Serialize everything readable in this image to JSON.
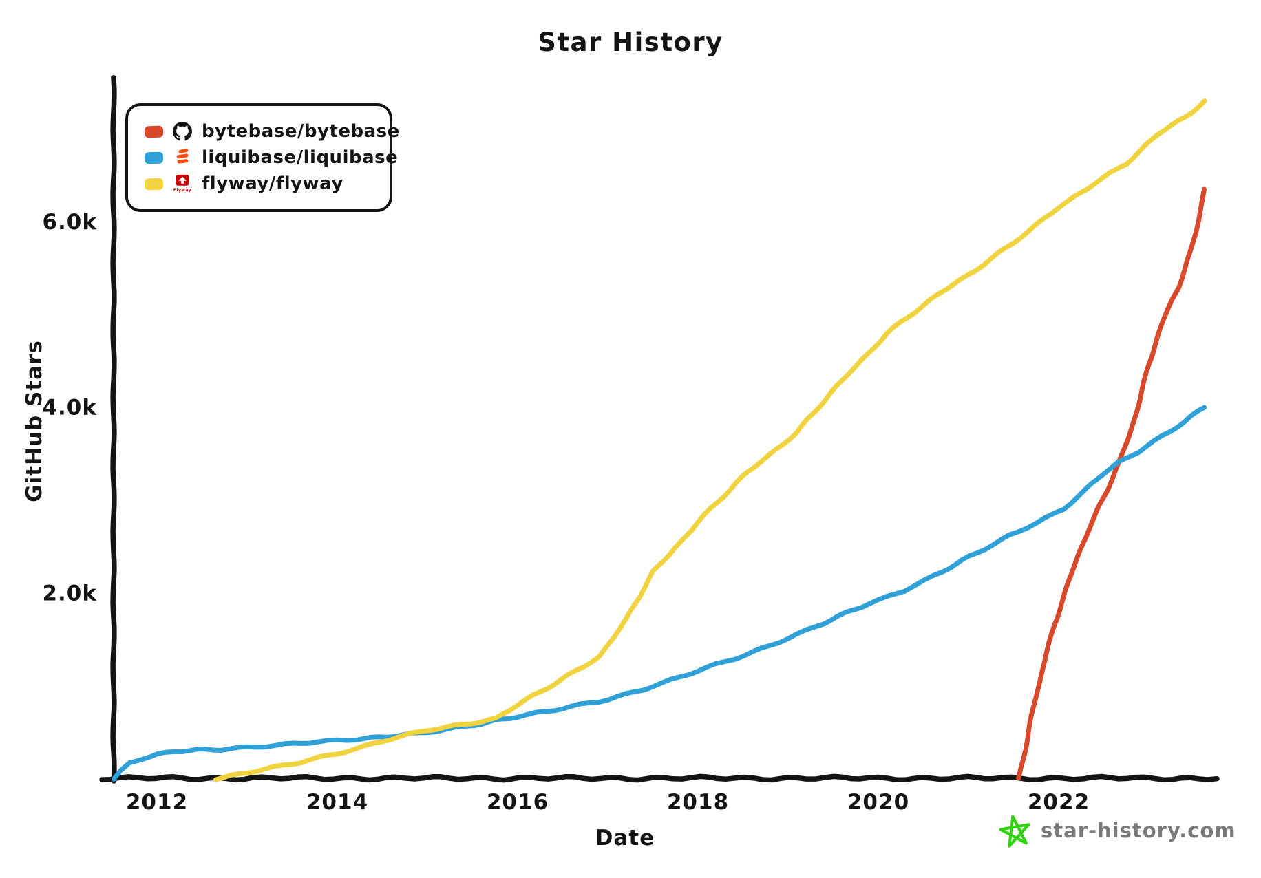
{
  "title": "Star History",
  "watermark": {
    "text": "star-history.com",
    "star_color": "#2ed30e",
    "text_color": "#7a7a7a"
  },
  "legend": {
    "items": [
      {
        "label": "bytebase/bytebase",
        "color": "#d8492b",
        "icon": "github-octocat"
      },
      {
        "label": "liquibase/liquibase",
        "color": "#2fa0d8",
        "icon": "liquibase-logo"
      },
      {
        "label": "flyway/flyway",
        "color": "#f1d23f",
        "icon": "flyway-logo"
      }
    ]
  },
  "chart_data": {
    "type": "line",
    "title": "Star History",
    "xlabel": "Date",
    "ylabel": "GitHub Stars",
    "style": "xkcd-hand-drawn",
    "grid": false,
    "legend_position": "top-left",
    "x_axis": {
      "ticks": [
        2012,
        2014,
        2016,
        2018,
        2020,
        2022
      ],
      "tick_labels": [
        "2012",
        "2014",
        "2016",
        "2018",
        "2020",
        "2022"
      ],
      "range": [
        2011.5,
        2023.8
      ],
      "unit": "year"
    },
    "y_axis": {
      "ticks": [
        2000,
        4000,
        6000
      ],
      "tick_labels": [
        "2.0k",
        "4.0k",
        "6.0k"
      ],
      "range": [
        0,
        7450
      ],
      "unit": "stars"
    },
    "series": [
      {
        "name": "bytebase/bytebase",
        "color": "#d8492b",
        "points": [
          [
            2021.56,
            0
          ],
          [
            2021.63,
            320
          ],
          [
            2021.72,
            760
          ],
          [
            2021.82,
            1180
          ],
          [
            2021.95,
            1650
          ],
          [
            2022.08,
            2020
          ],
          [
            2022.22,
            2420
          ],
          [
            2022.35,
            2720
          ],
          [
            2022.47,
            2970
          ],
          [
            2022.58,
            3200
          ],
          [
            2022.68,
            3420
          ],
          [
            2022.78,
            3680
          ],
          [
            2022.9,
            4080
          ],
          [
            2023.0,
            4470
          ],
          [
            2023.08,
            4700
          ],
          [
            2023.16,
            4930
          ],
          [
            2023.25,
            5140
          ],
          [
            2023.33,
            5300
          ],
          [
            2023.4,
            5480
          ],
          [
            2023.47,
            5700
          ],
          [
            2023.55,
            6020
          ],
          [
            2023.62,
            6350
          ]
        ]
      },
      {
        "name": "liquibase/liquibase",
        "color": "#2fa0d8",
        "points": [
          [
            2011.52,
            0
          ],
          [
            2011.6,
            80
          ],
          [
            2011.7,
            160
          ],
          [
            2011.85,
            215
          ],
          [
            2012.0,
            250
          ],
          [
            2012.2,
            285
          ],
          [
            2012.45,
            305
          ],
          [
            2012.7,
            315
          ],
          [
            2013.0,
            335
          ],
          [
            2013.3,
            350
          ],
          [
            2013.6,
            375
          ],
          [
            2013.9,
            400
          ],
          [
            2014.2,
            425
          ],
          [
            2014.55,
            450
          ],
          [
            2014.9,
            480
          ],
          [
            2015.2,
            520
          ],
          [
            2015.5,
            575
          ],
          [
            2015.75,
            625
          ],
          [
            2016.0,
            665
          ],
          [
            2016.4,
            730
          ],
          [
            2016.9,
            830
          ],
          [
            2017.4,
            960
          ],
          [
            2017.9,
            1120
          ],
          [
            2018.4,
            1290
          ],
          [
            2018.9,
            1470
          ],
          [
            2019.4,
            1670
          ],
          [
            2019.9,
            1890
          ],
          [
            2020.3,
            2030
          ],
          [
            2020.7,
            2220
          ],
          [
            2021.1,
            2430
          ],
          [
            2021.45,
            2620
          ],
          [
            2021.75,
            2750
          ],
          [
            2022.05,
            2900
          ],
          [
            2022.3,
            3100
          ],
          [
            2022.5,
            3290
          ],
          [
            2022.65,
            3400
          ],
          [
            2022.9,
            3530
          ],
          [
            2023.15,
            3690
          ],
          [
            2023.4,
            3840
          ],
          [
            2023.62,
            4000
          ]
        ]
      },
      {
        "name": "flyway/flyway",
        "color": "#f1d23f",
        "points": [
          [
            2012.65,
            0
          ],
          [
            2013.0,
            60
          ],
          [
            2013.5,
            150
          ],
          [
            2014.0,
            270
          ],
          [
            2014.5,
            400
          ],
          [
            2015.0,
            515
          ],
          [
            2015.4,
            580
          ],
          [
            2015.75,
            645
          ],
          [
            2016.0,
            790
          ],
          [
            2016.4,
            1010
          ],
          [
            2016.9,
            1310
          ],
          [
            2017.2,
            1700
          ],
          [
            2017.5,
            2220
          ],
          [
            2018.0,
            2760
          ],
          [
            2018.55,
            3300
          ],
          [
            2019.1,
            3730
          ],
          [
            2019.6,
            4290
          ],
          [
            2020.1,
            4800
          ],
          [
            2020.7,
            5240
          ],
          [
            2021.0,
            5430
          ],
          [
            2021.5,
            5770
          ],
          [
            2022.0,
            6150
          ],
          [
            2022.4,
            6420
          ],
          [
            2022.75,
            6620
          ],
          [
            2023.1,
            6940
          ],
          [
            2023.4,
            7130
          ],
          [
            2023.62,
            7300
          ]
        ]
      }
    ]
  }
}
